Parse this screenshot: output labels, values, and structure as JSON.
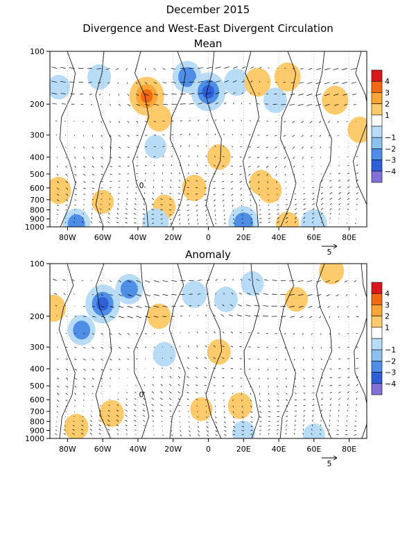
{
  "figure": {
    "title": "December 2015",
    "subtitle": "Divergence and West-East Divergent Circulation"
  },
  "chart_data": [
    {
      "type": "heatmap",
      "title": "Mean",
      "x_ticks": [
        "80W",
        "60W",
        "40W",
        "20W",
        "0",
        "20E",
        "40E",
        "60E",
        "80E"
      ],
      "x_tick_values": [
        -80,
        -60,
        -40,
        -20,
        0,
        20,
        40,
        60,
        80
      ],
      "xlim": [
        -90,
        90
      ],
      "y_ticks": [
        "100",
        "200",
        "300",
        "400",
        "500",
        "600",
        "700",
        "800",
        "900",
        "1000"
      ],
      "y_tick_values": [
        100,
        200,
        300,
        400,
        500,
        600,
        700,
        800,
        900,
        1000
      ],
      "ylim": [
        1000,
        100
      ],
      "vector_reference": {
        "label": "5",
        "value": 5
      },
      "contour_zero_label": "0",
      "colorbar": {
        "labels": [
          "4",
          "3",
          "2",
          "1",
          "−1",
          "−2",
          "−3",
          "−4"
        ],
        "colors": [
          "#d7191c",
          "#f16913",
          "#f9a637",
          "#fdca6c",
          "#ffffff",
          "#b9dcf6",
          "#8cc0ee",
          "#4f8ee6",
          "#2f5fd8",
          "#8470d8"
        ]
      },
      "regions": [
        {
          "x": -85,
          "p": 160,
          "v": -1.3
        },
        {
          "x": -62,
          "p": 140,
          "v": -1.4
        },
        {
          "x": -35,
          "p": 180,
          "v": 3.0
        },
        {
          "x": -28,
          "p": 240,
          "v": 1.6
        },
        {
          "x": -12,
          "p": 140,
          "v": -2.2
        },
        {
          "x": 0,
          "p": 170,
          "v": -3.0
        },
        {
          "x": 16,
          "p": 150,
          "v": -1.6
        },
        {
          "x": 28,
          "p": 150,
          "v": 1.8
        },
        {
          "x": 38,
          "p": 190,
          "v": -1.4
        },
        {
          "x": 45,
          "p": 140,
          "v": 1.8
        },
        {
          "x": 72,
          "p": 190,
          "v": 1.8
        },
        {
          "x": 86,
          "p": 280,
          "v": 1.5
        },
        {
          "x": -30,
          "p": 350,
          "v": -1.2
        },
        {
          "x": 6,
          "p": 400,
          "v": 1.4
        },
        {
          "x": -8,
          "p": 600,
          "v": 1.5
        },
        {
          "x": -25,
          "p": 770,
          "v": 1.3
        },
        {
          "x": -60,
          "p": 720,
          "v": 1.2
        },
        {
          "x": -85,
          "p": 620,
          "v": 1.6
        },
        {
          "x": 30,
          "p": 560,
          "v": 1.4
        },
        {
          "x": 35,
          "p": 620,
          "v": 1.4
        },
        {
          "x": -75,
          "p": 960,
          "v": -2.0
        },
        {
          "x": -30,
          "p": 950,
          "v": -1.8
        },
        {
          "x": 20,
          "p": 950,
          "v": -2.4
        },
        {
          "x": 60,
          "p": 960,
          "v": -1.8
        },
        {
          "x": 45,
          "p": 970,
          "v": 1.4
        }
      ]
    },
    {
      "type": "heatmap",
      "title": "Anomaly",
      "x_ticks": [
        "80W",
        "60W",
        "40W",
        "20W",
        "0",
        "20E",
        "40E",
        "60E",
        "80E"
      ],
      "x_tick_values": [
        -80,
        -60,
        -40,
        -20,
        0,
        20,
        40,
        60,
        80
      ],
      "xlim": [
        -90,
        90
      ],
      "y_ticks": [
        "100",
        "200",
        "300",
        "400",
        "500",
        "600",
        "700",
        "800",
        "900",
        "1000"
      ],
      "y_tick_values": [
        100,
        200,
        300,
        400,
        500,
        600,
        700,
        800,
        900,
        1000
      ],
      "ylim": [
        1000,
        100
      ],
      "vector_reference": {
        "label": "5",
        "value": 5
      },
      "contour_zero_label": "0",
      "colorbar": {
        "labels": [
          "4",
          "3",
          "2",
          "1",
          "−1",
          "−2",
          "−3",
          "−4"
        ],
        "colors": [
          "#d7191c",
          "#f16913",
          "#f9a637",
          "#fdca6c",
          "#ffffff",
          "#b9dcf6",
          "#8cc0ee",
          "#4f8ee6",
          "#2f5fd8",
          "#8470d8"
        ]
      },
      "regions": [
        {
          "x": -60,
          "p": 170,
          "v": -3.0
        },
        {
          "x": -72,
          "p": 240,
          "v": -2.0
        },
        {
          "x": -45,
          "p": 140,
          "v": -2.0
        },
        {
          "x": -88,
          "p": 180,
          "v": 1.6
        },
        {
          "x": -28,
          "p": 200,
          "v": 1.4
        },
        {
          "x": -25,
          "p": 330,
          "v": -1.3
        },
        {
          "x": -8,
          "p": 150,
          "v": -1.6
        },
        {
          "x": 10,
          "p": 160,
          "v": -1.4
        },
        {
          "x": 25,
          "p": 130,
          "v": -1.3
        },
        {
          "x": 50,
          "p": 160,
          "v": 1.3
        },
        {
          "x": 70,
          "p": 110,
          "v": 1.6
        },
        {
          "x": 6,
          "p": 320,
          "v": 1.4
        },
        {
          "x": -55,
          "p": 720,
          "v": 1.6
        },
        {
          "x": -75,
          "p": 860,
          "v": 1.5
        },
        {
          "x": 18,
          "p": 650,
          "v": 1.5
        },
        {
          "x": 20,
          "p": 930,
          "v": -1.3
        },
        {
          "x": 60,
          "p": 960,
          "v": -1.2
        },
        {
          "x": -4,
          "p": 680,
          "v": 1.2
        }
      ]
    }
  ]
}
